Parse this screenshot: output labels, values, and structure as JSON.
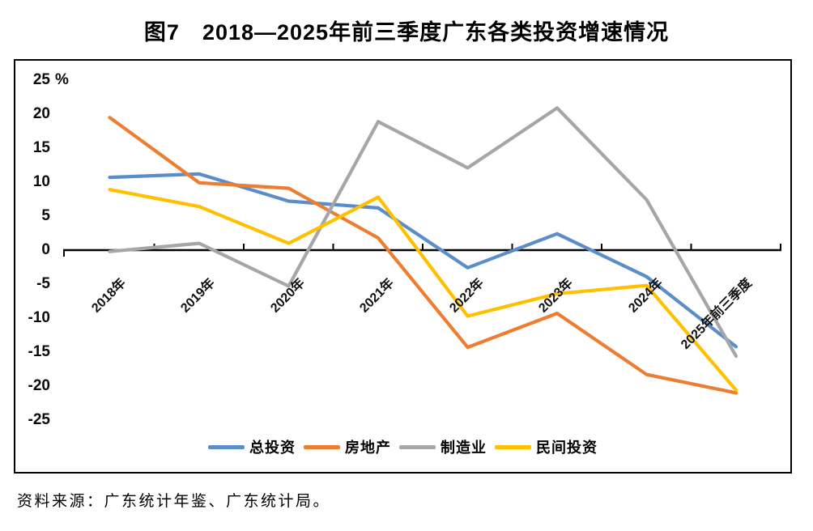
{
  "figure": {
    "title": "图7　2018—2025年前三季度广东各类投资增速情况",
    "source": "资料来源：广东统计年鉴、广东统计局。"
  },
  "chart_data": {
    "type": "line",
    "title": "图7　2018—2025年前三季度广东各类投资增速情况",
    "categories": [
      "2018年",
      "2019年",
      "2020年",
      "2021年",
      "2022年",
      "2023年",
      "2024年",
      "2025年前三季度"
    ],
    "series": [
      {
        "name": "总投资",
        "color": "#5B8EC9",
        "values": [
          10.7,
          11.2,
          7.2,
          6.2,
          -2.6,
          2.4,
          -3.9,
          -14.2
        ]
      },
      {
        "name": "房地产",
        "color": "#ED7D31",
        "values": [
          19.5,
          9.9,
          9.1,
          1.8,
          -14.3,
          -9.3,
          -18.3,
          -21.0
        ]
      },
      {
        "name": "制造业",
        "color": "#A6A6A6",
        "values": [
          -0.2,
          1.0,
          -5.3,
          18.9,
          12.1,
          20.9,
          7.4,
          -15.6
        ]
      },
      {
        "name": "民间投资",
        "color": "#FFC000",
        "values": [
          8.9,
          6.4,
          1.0,
          7.8,
          -9.7,
          -6.4,
          -5.2,
          -20.6
        ]
      }
    ],
    "y_axis": {
      "unit": "%",
      "min": -25,
      "max": 25,
      "step": 5,
      "tick_values": [
        25,
        20,
        15,
        10,
        5,
        0,
        -5,
        -10,
        -15,
        -20,
        -25
      ],
      "tick_labels": [
        "25",
        "20",
        "15",
        "10",
        "5",
        "0",
        "-5",
        "-10",
        "-15",
        "-20",
        "-25"
      ]
    },
    "x_axis": {
      "label_rotation_deg": -45
    },
    "legend": {
      "position": "bottom",
      "entries": [
        "总投资",
        "房地产",
        "制造业",
        "民间投资"
      ]
    },
    "grid": false
  }
}
